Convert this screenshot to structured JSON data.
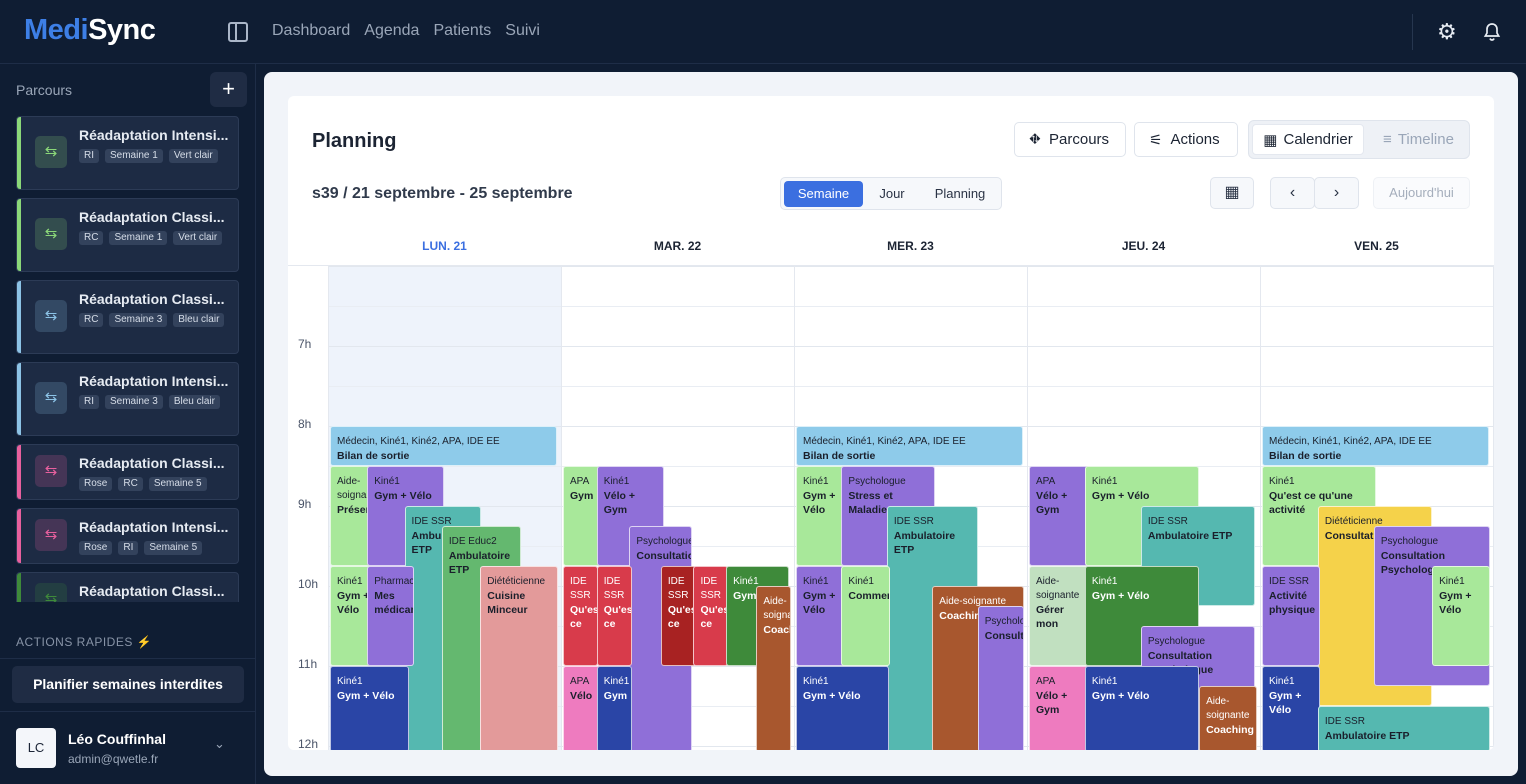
{
  "app": {
    "logo_a": "Medi",
    "logo_b": "Sync"
  },
  "nav": [
    "Dashboard",
    "Agenda",
    "Patients",
    "Suivi"
  ],
  "sidebar": {
    "title": "Parcours",
    "items": [
      {
        "title": "Réadaptation Intensi...",
        "tags": [
          "RI",
          "Semaine 1",
          "Vert clair"
        ],
        "color": "#8bd879"
      },
      {
        "title": "Réadaptation Classi...",
        "tags": [
          "RC",
          "Semaine 1",
          "Vert clair"
        ],
        "color": "#8bd879"
      },
      {
        "title": "Réadaptation Classi...",
        "tags": [
          "RC",
          "Semaine 3",
          "Bleu clair"
        ],
        "color": "#8cc3e6"
      },
      {
        "title": "Réadaptation Intensi...",
        "tags": [
          "RI",
          "Semaine 3",
          "Bleu clair"
        ],
        "color": "#8cc3e6"
      },
      {
        "title": "Réadaptation Classi...",
        "tags": [
          "Rose",
          "RC",
          "Semaine 5"
        ],
        "color": "#e8609e"
      },
      {
        "title": "Réadaptation Intensi...",
        "tags": [
          "Rose",
          "RI",
          "Semaine 5"
        ],
        "color": "#e8609e"
      },
      {
        "title": "Réadaptation Classi...",
        "tags": [],
        "color": "#3e8a3a"
      }
    ],
    "quick_actions": "ACTIONS RAPIDES",
    "quick_button": "Planifier semaines interdites",
    "user": {
      "initials": "LC",
      "name": "Léo Couffinhal",
      "email": "admin@qwetle.fr"
    }
  },
  "planning": {
    "title": "Planning",
    "btn_parcours": "Parcours",
    "btn_actions": "Actions",
    "seg_calendar": "Calendrier",
    "seg_timeline": "Timeline",
    "week": "s39 / 21 septembre - 25 septembre",
    "views": [
      "Semaine",
      "Jour",
      "Planning"
    ],
    "today": "Aujourd'hui",
    "days": [
      "LUN. 21",
      "MAR. 22",
      "MER. 23",
      "JEU. 24",
      "VEN. 25"
    ],
    "hours": [
      "7h",
      "8h",
      "9h",
      "10h",
      "11h",
      "12h"
    ]
  },
  "events": [
    {
      "d": 0,
      "s": 8.0,
      "e": 8.5,
      "c": 0,
      "w": 1,
      "role": "Médecin, Kiné1, Kiné2, APA, IDE EE",
      "title": "Bilan de sortie",
      "bg": "#8ecbea",
      "fg": "dk"
    },
    {
      "d": 0,
      "s": 8.5,
      "e": 9.75,
      "c": 0,
      "w": 1,
      "role": "Aide-soignante",
      "title": "Présentation",
      "bg": "#a8e89a",
      "fg": "dk",
      "wd": 0.2
    },
    {
      "d": 0,
      "s": 8.5,
      "e": 9.75,
      "c": 0,
      "w": 1,
      "role": "Kiné1",
      "title": "Gym + Vélo",
      "bg": "#8f6fd8",
      "fg": "dk",
      "off": 0.16,
      "wd": 0.33
    },
    {
      "d": 0,
      "s": 9.0,
      "e": 12.1,
      "c": 0,
      "w": 1,
      "role": "IDE SSR",
      "title": "Ambulatoire ETP",
      "bg": "#55b8b0",
      "fg": "dk",
      "off": 0.32,
      "wd": 0.33
    },
    {
      "d": 0,
      "s": 9.25,
      "e": 12.1,
      "c": 0,
      "w": 1,
      "role": "IDE Educ2",
      "title": "Ambulatoire ETP",
      "bg": "#64b86f",
      "fg": "dk",
      "off": 0.48,
      "wd": 0.34
    },
    {
      "d": 0,
      "s": 9.75,
      "e": 12.1,
      "c": 0,
      "w": 1,
      "role": "Diététicienne",
      "title": "Cuisine Minceur",
      "bg": "#e39a9a",
      "fg": "dk",
      "off": 0.645,
      "wd": 0.345
    },
    {
      "d": 0,
      "s": 9.75,
      "e": 11.0,
      "c": 0,
      "w": 1,
      "role": "Kiné1",
      "title": "Gym + Vélo",
      "bg": "#a8e89a",
      "fg": "dk",
      "wd": 0.2
    },
    {
      "d": 0,
      "s": 9.75,
      "e": 11.0,
      "c": 0,
      "w": 1,
      "role": "Pharmacien",
      "title": "Mes médicaments",
      "bg": "#8f6fd8",
      "fg": "dk",
      "off": 0.16,
      "wd": 0.2
    },
    {
      "d": 0,
      "s": 11.0,
      "e": 12.1,
      "c": 0,
      "w": 1,
      "role": "Kiné1",
      "title": "Gym + Vélo",
      "bg": "#2a45a6",
      "fg": "lt",
      "wd": 0.34
    },
    {
      "d": 1,
      "s": 8.5,
      "e": 9.75,
      "c": 0,
      "w": 1,
      "role": "APA",
      "title": "Gym",
      "bg": "#a8e89a",
      "fg": "dk",
      "wd": 0.17
    },
    {
      "d": 1,
      "s": 8.5,
      "e": 9.75,
      "c": 0,
      "w": 1,
      "role": "Kiné1",
      "title": "Vélo + Gym",
      "bg": "#8f6fd8",
      "fg": "dk",
      "off": 0.145,
      "wd": 0.29
    },
    {
      "d": 1,
      "s": 9.25,
      "e": 12.1,
      "c": 0,
      "w": 1,
      "role": "Psychologue",
      "title": "Consultation",
      "bg": "#8f6fd8",
      "fg": "dk",
      "off": 0.285,
      "wd": 0.27
    },
    {
      "d": 1,
      "s": 9.75,
      "e": 11.0,
      "c": 0,
      "w": 1,
      "role": "IDE SSR",
      "title": "Qu'est ce",
      "bg": "#d83b4b",
      "fg": "lt",
      "wd": 0.15
    },
    {
      "d": 1,
      "s": 9.75,
      "e": 11.0,
      "c": 0,
      "w": 1,
      "role": "IDE SSR",
      "title": "Qu'est ce",
      "bg": "#d83b4b",
      "fg": "lt",
      "off": 0.145,
      "wd": 0.15
    },
    {
      "d": 1,
      "s": 9.75,
      "e": 11.0,
      "c": 0,
      "w": 1,
      "role": "IDE SSR",
      "title": "Qu'est ce",
      "bg": "#a82222",
      "fg": "lt",
      "off": 0.42,
      "wd": 0.15
    },
    {
      "d": 1,
      "s": 9.75,
      "e": 11.0,
      "c": 0,
      "w": 1,
      "role": "IDE SSR",
      "title": "Qu'est ce",
      "bg": "#d83b4b",
      "fg": "lt",
      "off": 0.56,
      "wd": 0.15
    },
    {
      "d": 1,
      "s": 9.75,
      "e": 11.0,
      "c": 0,
      "w": 1,
      "role": "Kiné1",
      "title": "Gym",
      "bg": "#3e8a3a",
      "fg": "lt",
      "off": 0.7,
      "wd": 0.27
    },
    {
      "d": 1,
      "s": 10.0,
      "e": 12.1,
      "c": 0,
      "w": 1,
      "role": "Aide-soignante",
      "title": "Coaching",
      "bg": "#a8572e",
      "fg": "lt",
      "off": 0.83,
      "wd": 0.15
    },
    {
      "d": 1,
      "s": 11.0,
      "e": 12.1,
      "c": 0,
      "w": 1,
      "role": "APA",
      "title": "Vélo",
      "bg": "#ee7bbf",
      "fg": "dk",
      "wd": 0.17
    },
    {
      "d": 1,
      "s": 11.0,
      "e": 12.1,
      "c": 0,
      "w": 1,
      "role": "Kiné1",
      "title": "Gym",
      "bg": "#2a45a6",
      "fg": "lt",
      "off": 0.145,
      "wd": 0.15
    },
    {
      "d": 2,
      "s": 8.0,
      "e": 8.5,
      "c": 0,
      "w": 1,
      "role": "Médecin, Kiné1, Kiné2, APA, IDE EE",
      "title": "Bilan de sortie",
      "bg": "#8ecbea",
      "fg": "dk"
    },
    {
      "d": 2,
      "s": 8.5,
      "e": 9.75,
      "c": 0,
      "w": 1,
      "role": "Kiné1",
      "title": "Gym + Vélo",
      "bg": "#a8e89a",
      "fg": "dk",
      "wd": 0.21
    },
    {
      "d": 2,
      "s": 8.5,
      "e": 9.75,
      "c": 0,
      "w": 1,
      "role": "Psychologue",
      "title": "Stress et Maladie",
      "bg": "#8f6fd8",
      "fg": "dk",
      "off": 0.195,
      "wd": 0.4
    },
    {
      "d": 2,
      "s": 9.0,
      "e": 12.1,
      "c": 0,
      "w": 1,
      "role": "IDE SSR",
      "title": "Ambulatoire ETP",
      "bg": "#55b8b0",
      "fg": "dk",
      "off": 0.39,
      "wd": 0.39
    },
    {
      "d": 2,
      "s": 9.75,
      "e": 11.0,
      "c": 0,
      "w": 1,
      "role": "Kiné1",
      "title": "Gym + Vélo",
      "bg": "#8f6fd8",
      "fg": "dk",
      "wd": 0.21
    },
    {
      "d": 2,
      "s": 9.75,
      "e": 11.0,
      "c": 0,
      "w": 1,
      "role": "Kiné1",
      "title": "Comment",
      "bg": "#a8e89a",
      "fg": "dk",
      "off": 0.195,
      "wd": 0.21
    },
    {
      "d": 2,
      "s": 10.0,
      "e": 12.1,
      "c": 0,
      "w": 1,
      "role": "Aide-soignante",
      "title": "Coaching",
      "bg": "#a8572e",
      "fg": "lt",
      "off": 0.585,
      "wd": 0.4
    },
    {
      "d": 2,
      "s": 10.25,
      "e": 12.1,
      "c": 0,
      "w": 1,
      "role": "Psychologue",
      "title": "Consultation",
      "bg": "#8f6fd8",
      "fg": "dk",
      "off": 0.78,
      "wd": 0.205
    },
    {
      "d": 2,
      "s": 11.0,
      "e": 12.1,
      "c": 0,
      "w": 1,
      "role": "Kiné1",
      "title": "Gym + Vélo",
      "bg": "#2a45a6",
      "fg": "lt",
      "wd": 0.4
    },
    {
      "d": 3,
      "s": 8.5,
      "e": 9.75,
      "c": 0,
      "w": 1,
      "role": "APA",
      "title": "Vélo + Gym",
      "bg": "#8f6fd8",
      "fg": "dk",
      "wd": 0.27
    },
    {
      "d": 3,
      "s": 8.5,
      "e": 9.75,
      "c": 0,
      "w": 1,
      "role": "Kiné1",
      "title": "Gym + Vélo",
      "bg": "#a8e89a",
      "fg": "dk",
      "off": 0.24,
      "wd": 0.49
    },
    {
      "d": 3,
      "s": 9.0,
      "e": 10.25,
      "c": 0,
      "w": 1,
      "role": "IDE SSR",
      "title": "Ambulatoire ETP",
      "bg": "#55b8b0",
      "fg": "dk",
      "off": 0.48,
      "wd": 0.49
    },
    {
      "d": 3,
      "s": 9.75,
      "e": 11.0,
      "c": 0,
      "w": 1,
      "role": "Aide-soignante",
      "title": "Gérer mon",
      "bg": "#c1e0c0",
      "fg": "dk",
      "wd": 0.27
    },
    {
      "d": 3,
      "s": 9.75,
      "e": 11.0,
      "c": 0,
      "w": 1,
      "role": "Kiné1",
      "title": "Gym + Vélo",
      "bg": "#3e8a3a",
      "fg": "lt",
      "off": 0.24,
      "wd": 0.49
    },
    {
      "d": 3,
      "s": 10.5,
      "e": 11.5,
      "c": 0,
      "w": 1,
      "role": "Psychologue",
      "title": "Consultation Psychologue",
      "bg": "#8f6fd8",
      "fg": "dk",
      "off": 0.48,
      "wd": 0.49
    },
    {
      "d": 3,
      "s": 11.0,
      "e": 12.1,
      "c": 0,
      "w": 1,
      "role": "APA",
      "title": "Vélo + Gym",
      "bg": "#ee7bbf",
      "fg": "dk",
      "wd": 0.27
    },
    {
      "d": 3,
      "s": 11.0,
      "e": 12.1,
      "c": 0,
      "w": 1,
      "role": "Kiné1",
      "title": "Gym + Vélo",
      "bg": "#2a45a6",
      "fg": "lt",
      "off": 0.24,
      "wd": 0.49
    },
    {
      "d": 3,
      "s": 11.25,
      "e": 12.1,
      "c": 0,
      "w": 1,
      "role": "Aide-soignante",
      "title": "Coaching",
      "bg": "#a8572e",
      "fg": "lt",
      "off": 0.73,
      "wd": 0.25
    },
    {
      "d": 4,
      "s": 8.0,
      "e": 8.5,
      "c": 0,
      "w": 1,
      "role": "Médecin, Kiné1, Kiné2, APA, IDE EE",
      "title": "Bilan de sortie",
      "bg": "#8ecbea",
      "fg": "dk"
    },
    {
      "d": 4,
      "s": 8.5,
      "e": 9.75,
      "c": 0,
      "w": 1,
      "role": "Kiné1",
      "title": "Qu'est ce qu'une activité",
      "bg": "#a8e89a",
      "fg": "dk",
      "wd": 0.49
    },
    {
      "d": 4,
      "s": 9.0,
      "e": 11.5,
      "c": 0,
      "w": 1,
      "role": "Diététicienne",
      "title": "Consultation",
      "bg": "#f5d24a",
      "fg": "dk",
      "off": 0.24,
      "wd": 0.49
    },
    {
      "d": 4,
      "s": 9.25,
      "e": 11.25,
      "c": 0,
      "w": 1,
      "role": "Psychologue",
      "title": "Consultation Psychologue",
      "bg": "#8f6fd8",
      "fg": "dk",
      "off": 0.48,
      "wd": 0.5
    },
    {
      "d": 4,
      "s": 9.75,
      "e": 11.0,
      "c": 0,
      "w": 1,
      "role": "IDE SSR",
      "title": "Activité physique",
      "bg": "#8f6fd8",
      "fg": "dk",
      "wd": 0.25
    },
    {
      "d": 4,
      "s": 9.75,
      "e": 11.0,
      "c": 0,
      "w": 1,
      "role": "Kiné1",
      "title": "Gym + Vélo",
      "bg": "#a8e89a",
      "fg": "dk",
      "off": 0.73,
      "wd": 0.25
    },
    {
      "d": 4,
      "s": 11.0,
      "e": 12.1,
      "c": 0,
      "w": 1,
      "role": "Kiné1",
      "title": "Gym + Vélo",
      "bg": "#2a45a6",
      "fg": "lt",
      "wd": 0.25
    },
    {
      "d": 4,
      "s": 11.5,
      "e": 12.1,
      "c": 0,
      "w": 1,
      "role": "IDE SSR",
      "title": "Ambulatoire ETP",
      "bg": "#55b8b0",
      "fg": "dk",
      "off": 0.24,
      "wd": 0.74
    }
  ]
}
